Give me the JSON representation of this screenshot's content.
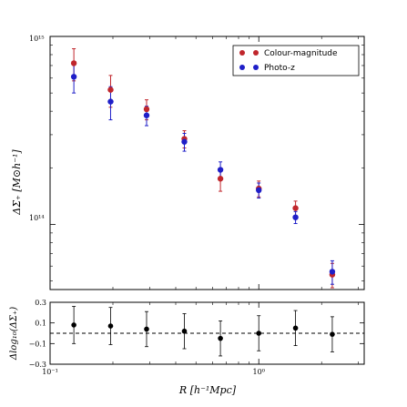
{
  "chart_data": [
    {
      "type": "scatter",
      "panel": "main",
      "xscale": "log",
      "yscale": "log",
      "xlim": [
        0.1,
        3.2
      ],
      "ylim": [
        45000000000000,
        1000000000000000
      ],
      "ylabel": "ΔΣ₊ [M⊙h⁻¹]",
      "y_tick_labels": [
        "10¹⁵",
        "10¹⁴"
      ],
      "legend_position": "top-right",
      "error_bars": true,
      "grid": false,
      "x": [
        0.13,
        0.195,
        0.29,
        0.44,
        0.655,
        1.0,
        1.5,
        2.25
      ],
      "series": [
        {
          "name": "Colour-magnitude",
          "color": "#c0262c",
          "values": [
            720000000000000,
            520000000000000,
            410000000000000,
            285000000000000,
            175000000000000,
            155000000000000,
            122000000000000,
            54000000000000
          ],
          "err_up": [
            140000000000000,
            100000000000000,
            50000000000000,
            30000000000000,
            25000000000000,
            15000000000000,
            11000000000000,
            8000000000000
          ],
          "err_down": [
            140000000000000,
            100000000000000,
            50000000000000,
            30000000000000,
            25000000000000,
            15000000000000,
            11000000000000,
            8000000000000
          ]
        },
        {
          "name": "Photo-z",
          "color": "#1f1fc8",
          "values": [
            610000000000000,
            450000000000000,
            380000000000000,
            275000000000000,
            195000000000000,
            152000000000000,
            109000000000000,
            56000000000000
          ],
          "err_up": [
            110000000000000,
            90000000000000,
            45000000000000,
            30000000000000,
            20000000000000,
            14000000000000,
            8000000000000,
            8000000000000
          ],
          "err_down": [
            110000000000000,
            90000000000000,
            45000000000000,
            30000000000000,
            20000000000000,
            14000000000000,
            8000000000000,
            8000000000000
          ]
        }
      ]
    },
    {
      "type": "scatter",
      "panel": "residual",
      "xscale": "log",
      "xlim": [
        0.1,
        3.2
      ],
      "ylim": [
        -0.3,
        0.3
      ],
      "xlabel": "R [h⁻¹Mpc]",
      "ylabel": "Δlog₁₀(ΔΣ₊)",
      "y_ticks": [
        0.3,
        0.1,
        -0.1,
        -0.3
      ],
      "y_tick_labels": [
        "0.3",
        "0.1",
        "−0.1",
        "−0.3"
      ],
      "x_tick_labels": [
        "10⁻¹",
        "10⁰"
      ],
      "reference_line": 0,
      "error_bars": true,
      "x": [
        0.13,
        0.195,
        0.29,
        0.44,
        0.655,
        1.0,
        1.5,
        2.25
      ],
      "series": [
        {
          "color": "#000000",
          "values": [
            0.08,
            0.07,
            0.04,
            0.02,
            -0.05,
            0.0,
            0.05,
            -0.01
          ],
          "err": [
            0.18,
            0.18,
            0.17,
            0.17,
            0.17,
            0.17,
            0.17,
            0.17
          ]
        }
      ]
    }
  ]
}
